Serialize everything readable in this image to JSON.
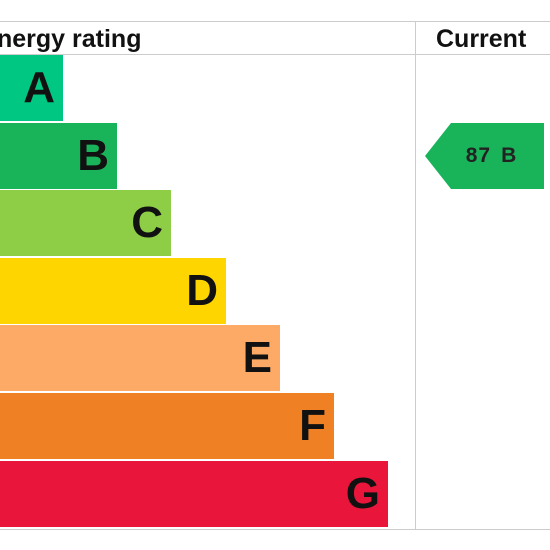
{
  "chart_data": {
    "type": "bar",
    "header": {
      "rating_label": "nergy rating",
      "current_label": "Current"
    },
    "bands": [
      {
        "letter": "A",
        "color": "#00c781"
      },
      {
        "letter": "B",
        "color": "#19b459"
      },
      {
        "letter": "C",
        "color": "#8dce46"
      },
      {
        "letter": "D",
        "color": "#ffd500"
      },
      {
        "letter": "E",
        "color": "#fcaa65"
      },
      {
        "letter": "F",
        "color": "#ef8023"
      },
      {
        "letter": "G",
        "color": "#e9153b"
      }
    ],
    "current": {
      "value": 87,
      "band": "B",
      "color": "#19b459"
    }
  }
}
